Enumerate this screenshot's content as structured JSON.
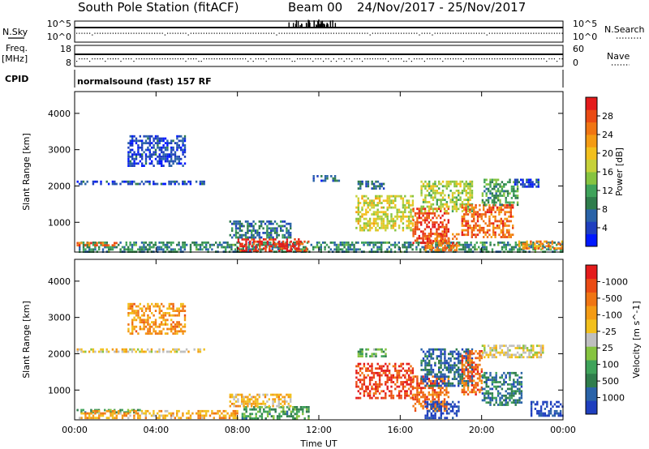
{
  "header": {
    "station": "South Pole Station (fitACF)",
    "beam": "Beam 00",
    "date_range": "24/Nov/2017 - 25/Nov/2017"
  },
  "side_labels": {
    "nsky": "N.Sky",
    "nsearch": "N.Search",
    "freq": "Freq.",
    "freq_unit": "[MHz]",
    "nave": "Nave",
    "cpid": "CPID"
  },
  "strip_ticks": {
    "nsky_top": "10^5",
    "nsky_bottom": "10^0",
    "nsearch_top": "10^5",
    "nsearch_bottom": "10^0",
    "freq_top": "18",
    "freq_bottom": "8",
    "nave_top": "60",
    "nave_bottom": "0"
  },
  "cpid_text": "normalsound (fast) 157 RF",
  "chart_data": [
    {
      "type": "heatmap",
      "name": "power",
      "ylabel": "Slant Range [km]",
      "xlabel": "",
      "yticks": [
        1000,
        2000,
        3000,
        4000
      ],
      "ylim": [
        180,
        4600
      ],
      "xlim": [
        0,
        24
      ],
      "colorbar": {
        "label": "Power [dB]",
        "ticks": [
          "4",
          "8",
          "12",
          "16",
          "20",
          "24",
          "28"
        ],
        "colors": [
          "#0018ff",
          "#1f3fbf",
          "#2a63a8",
          "#2f7d4c",
          "#3fa35a",
          "#86c440",
          "#c6d13a",
          "#f2c01d",
          "#f49b14",
          "#f07513",
          "#ea4b14",
          "#e41b1b"
        ]
      },
      "bands": [
        {
          "x0": 0.2,
          "x1": 24,
          "r0": 180,
          "r1": 470,
          "v": 0.3
        },
        {
          "x0": 8.0,
          "x1": 11.5,
          "r0": 200,
          "r1": 560,
          "v": 0.92
        },
        {
          "x0": 0.0,
          "x1": 2.2,
          "r0": 360,
          "r1": 460,
          "v": 0.8
        },
        {
          "x0": 7.6,
          "x1": 10.6,
          "r0": 560,
          "r1": 1050,
          "v": 0.25
        },
        {
          "x0": 0.1,
          "x1": 6.5,
          "r0": 2030,
          "r1": 2150,
          "v": 0.15
        },
        {
          "x0": 13.8,
          "x1": 16.6,
          "r0": 800,
          "r1": 1750,
          "v": 0.55
        },
        {
          "x0": 13.9,
          "x1": 15.2,
          "r0": 1900,
          "r1": 2150,
          "v": 0.2
        },
        {
          "x0": 16.6,
          "x1": 18.4,
          "r0": 450,
          "r1": 1400,
          "v": 0.9
        },
        {
          "x0": 17.2,
          "x1": 18.9,
          "r0": 200,
          "r1": 700,
          "v": 0.8
        },
        {
          "x0": 17.0,
          "x1": 19.5,
          "r0": 1300,
          "r1": 2150,
          "v": 0.5
        },
        {
          "x0": 19.0,
          "x1": 21.5,
          "r0": 600,
          "r1": 1500,
          "v": 0.82
        },
        {
          "x0": 20.0,
          "x1": 21.8,
          "r0": 1500,
          "r1": 2200,
          "v": 0.35
        },
        {
          "x0": 21.6,
          "x1": 22.8,
          "r0": 1950,
          "r1": 2200,
          "v": 0.15
        },
        {
          "x0": 21.8,
          "x1": 24,
          "r0": 300,
          "r1": 500,
          "v": 0.75
        },
        {
          "x0": 2.6,
          "x1": 5.4,
          "r0": 2550,
          "r1": 3400,
          "v": 0.15
        },
        {
          "x0": 11.7,
          "x1": 13.2,
          "r0": 2150,
          "r1": 2300,
          "v": 0.2
        }
      ]
    },
    {
      "type": "heatmap",
      "name": "velocity",
      "ylabel": "Slant Range [km]",
      "xlabel": "Time UT",
      "yticks": [
        1000,
        2000,
        3000,
        4000
      ],
      "ylim": [
        180,
        4600
      ],
      "xlim": [
        0,
        24
      ],
      "xticks": [
        "00:00",
        "04:00",
        "08:00",
        "12:00",
        "16:00",
        "20:00",
        "00:00"
      ],
      "colorbar": {
        "label": "Velocity [m s^-1]",
        "ticks": [
          "1000",
          "500",
          "100",
          "25",
          "-25",
          "-100",
          "-500",
          "-1000"
        ],
        "colors": [
          "#1f3fbf",
          "#2a63a8",
          "#2f7d4c",
          "#3fa35a",
          "#86c440",
          "#bfbfbf",
          "#f2c01d",
          "#f49b14",
          "#f07513",
          "#ea4b14",
          "#e41b1b"
        ]
      },
      "bands": [
        {
          "x0": 0.0,
          "x1": 3.2,
          "r0": 360,
          "r1": 480,
          "v": 0.3
        },
        {
          "x0": 0.2,
          "x1": 8.0,
          "r0": 200,
          "r1": 450,
          "v": 0.65
        },
        {
          "x0": 8.2,
          "x1": 11.5,
          "r0": 200,
          "r1": 560,
          "v": 0.3
        },
        {
          "x0": 7.6,
          "x1": 10.6,
          "r0": 560,
          "r1": 900,
          "v": 0.62
        },
        {
          "x0": 0.1,
          "x1": 6.5,
          "r0": 2030,
          "r1": 2150,
          "v": 0.55
        },
        {
          "x0": 13.8,
          "x1": 16.6,
          "r0": 800,
          "r1": 1750,
          "v": 0.9
        },
        {
          "x0": 16.6,
          "x1": 18.4,
          "r0": 450,
          "r1": 1400,
          "v": 0.8
        },
        {
          "x0": 17.2,
          "x1": 18.9,
          "r0": 200,
          "r1": 700,
          "v": 0.05
        },
        {
          "x0": 17.0,
          "x1": 19.5,
          "r0": 1100,
          "r1": 2150,
          "v": 0.15
        },
        {
          "x0": 19.0,
          "x1": 20.0,
          "r0": 900,
          "r1": 2100,
          "v": 0.82
        },
        {
          "x0": 20.0,
          "x1": 22.0,
          "r0": 600,
          "r1": 1500,
          "v": 0.2
        },
        {
          "x0": 20.0,
          "x1": 23.0,
          "r0": 1900,
          "r1": 2250,
          "v": 0.52
        },
        {
          "x0": 22.4,
          "x1": 24,
          "r0": 300,
          "r1": 700,
          "v": 0.05
        },
        {
          "x0": 2.6,
          "x1": 5.4,
          "r0": 2550,
          "r1": 3400,
          "v": 0.7
        },
        {
          "x0": 13.9,
          "x1": 15.3,
          "r0": 1950,
          "r1": 2150,
          "v": 0.35
        }
      ]
    }
  ]
}
